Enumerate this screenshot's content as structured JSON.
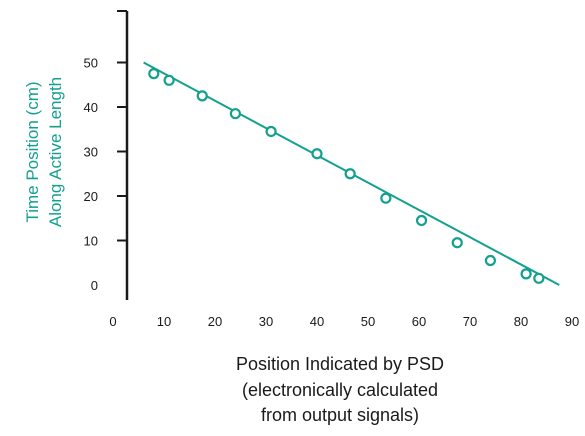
{
  "chart_data": {
    "type": "scatter",
    "ylabel_lines": [
      "Time Position (cm)",
      "Along Active Length"
    ],
    "xlabel_lines": [
      "Position Indicated by PSD",
      "(electronically calculated",
      "from output signals)"
    ],
    "x_ticks": [
      0,
      10,
      20,
      30,
      40,
      50,
      60,
      70,
      80,
      90
    ],
    "y_ticks": [
      0,
      10,
      20,
      30,
      40,
      50
    ],
    "xlim": [
      0,
      90
    ],
    "ylim": [
      0,
      60
    ],
    "grid": false,
    "series": [
      {
        "points": [
          {
            "x": 8,
            "y": 47.5
          },
          {
            "x": 11,
            "y": 46
          },
          {
            "x": 17.5,
            "y": 42.5
          },
          {
            "x": 24,
            "y": 38.5
          },
          {
            "x": 31,
            "y": 34.5
          },
          {
            "x": 40,
            "y": 29.5
          },
          {
            "x": 46.5,
            "y": 25
          },
          {
            "x": 53.5,
            "y": 19.5
          },
          {
            "x": 60.5,
            "y": 14.5
          },
          {
            "x": 67.5,
            "y": 9.5
          },
          {
            "x": 74,
            "y": 5.5
          },
          {
            "x": 81,
            "y": 2.5
          },
          {
            "x": 83.5,
            "y": 1.5
          }
        ],
        "fit_line": [
          {
            "x": 6,
            "y": 50
          },
          {
            "x": 87.5,
            "y": 0
          }
        ]
      }
    ],
    "color": "#13a08e",
    "axis_color": "#1a1a1a",
    "label_color": "#13a08e",
    "xlabel_color": "#1a1a1a"
  }
}
